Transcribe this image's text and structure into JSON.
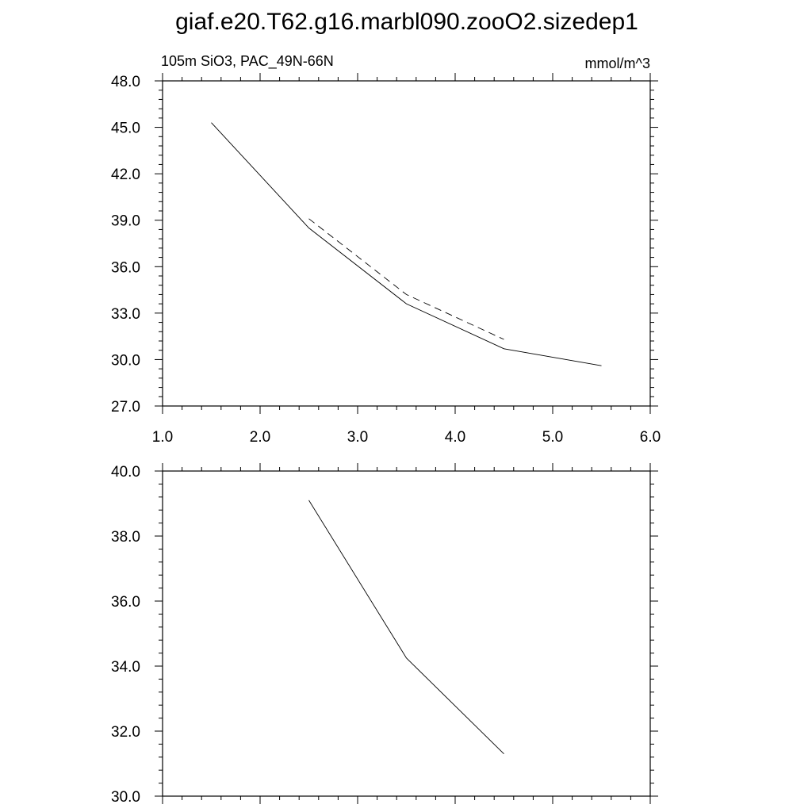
{
  "title": "giaf.e20.T62.g16.marbl090.zooO2.sizedep1",
  "chart_data": [
    {
      "type": "line",
      "subtitle_left": "105m SiO3, PAC_49N-66N",
      "subtitle_right": "mmol/m^3",
      "xlim": [
        1.0,
        6.0
      ],
      "ylim": [
        27.0,
        48.0
      ],
      "x_ticks": [
        1.0,
        2.0,
        3.0,
        4.0,
        5.0,
        6.0
      ],
      "x_tick_labels": [
        "1.0",
        "2.0",
        "3.0",
        "4.0",
        "5.0",
        "6.0"
      ],
      "y_ticks": [
        27.0,
        30.0,
        33.0,
        36.0,
        39.0,
        42.0,
        45.0,
        48.0
      ],
      "y_tick_labels": [
        "27.0",
        "30.0",
        "33.0",
        "36.0",
        "39.0",
        "42.0",
        "45.0",
        "48.0"
      ],
      "grid": false,
      "series": [
        {
          "style": "solid",
          "color": "#000000",
          "x": [
            1.5,
            2.5,
            3.5,
            4.5,
            5.5
          ],
          "y": [
            45.3,
            38.5,
            33.6,
            30.7,
            29.6
          ]
        },
        {
          "style": "dashed",
          "color": "#000000",
          "x": [
            2.5,
            3.5,
            4.5
          ],
          "y": [
            39.1,
            34.2,
            31.3
          ]
        }
      ]
    },
    {
      "type": "line",
      "xlim": [
        1.0,
        6.0
      ],
      "ylim": [
        30.0,
        40.0
      ],
      "x_ticks": [
        1.0,
        2.0,
        3.0,
        4.0,
        5.0,
        6.0
      ],
      "y_ticks": [
        30.0,
        32.0,
        34.0,
        36.0,
        38.0,
        40.0
      ],
      "y_tick_labels": [
        "30.0",
        "32.0",
        "34.0",
        "36.0",
        "38.0",
        "40.0"
      ],
      "grid": false,
      "series": [
        {
          "style": "solid",
          "color": "#000000",
          "x": [
            2.5,
            3.5,
            4.5
          ],
          "y": [
            39.1,
            34.25,
            31.3
          ]
        }
      ]
    }
  ]
}
